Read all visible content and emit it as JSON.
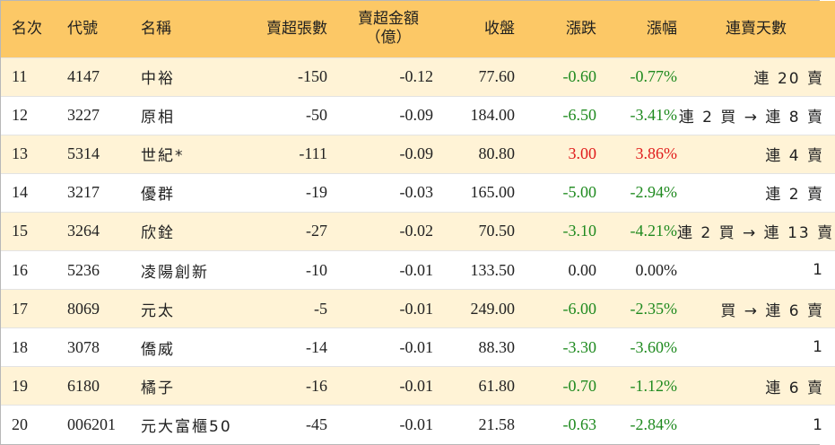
{
  "header": {
    "rank": "名次",
    "code": "代號",
    "name": "名稱",
    "sell_lots": "賣超張數",
    "sell_amount_line1": "賣超金額",
    "sell_amount_line2": "（億）",
    "close": "收盤",
    "change": "漲跌",
    "change_pct": "漲幅",
    "streak": "連賣天數"
  },
  "colors": {
    "header_bg": "#fcc866",
    "odd_row_bg": "#fff3d6",
    "up": "#e01b1b",
    "down": "#1f8a1f"
  },
  "rows": [
    {
      "rank": "11",
      "code": "4147",
      "name": "中裕",
      "sell_lots": "-150",
      "sell_amount": "-0.12",
      "close": "77.60",
      "change": "-0.60",
      "change_pct": "-0.77%",
      "streak": "連 20 賣",
      "trend": "down"
    },
    {
      "rank": "12",
      "code": "3227",
      "name": "原相",
      "sell_lots": "-50",
      "sell_amount": "-0.09",
      "close": "184.00",
      "change": "-6.50",
      "change_pct": "-3.41%",
      "streak": "連 2 買 → 連 8 賣",
      "trend": "down"
    },
    {
      "rank": "13",
      "code": "5314",
      "name": "世紀*",
      "sell_lots": "-111",
      "sell_amount": "-0.09",
      "close": "80.80",
      "change": "3.00",
      "change_pct": "3.86%",
      "streak": "連 4 賣",
      "trend": "up"
    },
    {
      "rank": "14",
      "code": "3217",
      "name": "優群",
      "sell_lots": "-19",
      "sell_amount": "-0.03",
      "close": "165.00",
      "change": "-5.00",
      "change_pct": "-2.94%",
      "streak": "連 2 賣",
      "trend": "down"
    },
    {
      "rank": "15",
      "code": "3264",
      "name": "欣銓",
      "sell_lots": "-27",
      "sell_amount": "-0.02",
      "close": "70.50",
      "change": "-3.10",
      "change_pct": "-4.21%",
      "streak": "連 2 買 → 連 13 賣",
      "trend": "down"
    },
    {
      "rank": "16",
      "code": "5236",
      "name": "凌陽創新",
      "sell_lots": "-10",
      "sell_amount": "-0.01",
      "close": "133.50",
      "change": "0.00",
      "change_pct": "0.00%",
      "streak": "1",
      "trend": "flat"
    },
    {
      "rank": "17",
      "code": "8069",
      "name": "元太",
      "sell_lots": "-5",
      "sell_amount": "-0.01",
      "close": "249.00",
      "change": "-6.00",
      "change_pct": "-2.35%",
      "streak": "買 → 連 6 賣",
      "trend": "down"
    },
    {
      "rank": "18",
      "code": "3078",
      "name": "僑威",
      "sell_lots": "-14",
      "sell_amount": "-0.01",
      "close": "88.30",
      "change": "-3.30",
      "change_pct": "-3.60%",
      "streak": "1",
      "trend": "down"
    },
    {
      "rank": "19",
      "code": "6180",
      "name": "橘子",
      "sell_lots": "-16",
      "sell_amount": "-0.01",
      "close": "61.80",
      "change": "-0.70",
      "change_pct": "-1.12%",
      "streak": "連 6 賣",
      "trend": "down"
    },
    {
      "rank": "20",
      "code": "006201",
      "name": "元大富櫃50",
      "sell_lots": "-45",
      "sell_amount": "-0.01",
      "close": "21.58",
      "change": "-0.63",
      "change_pct": "-2.84%",
      "streak": "1",
      "trend": "down"
    }
  ]
}
